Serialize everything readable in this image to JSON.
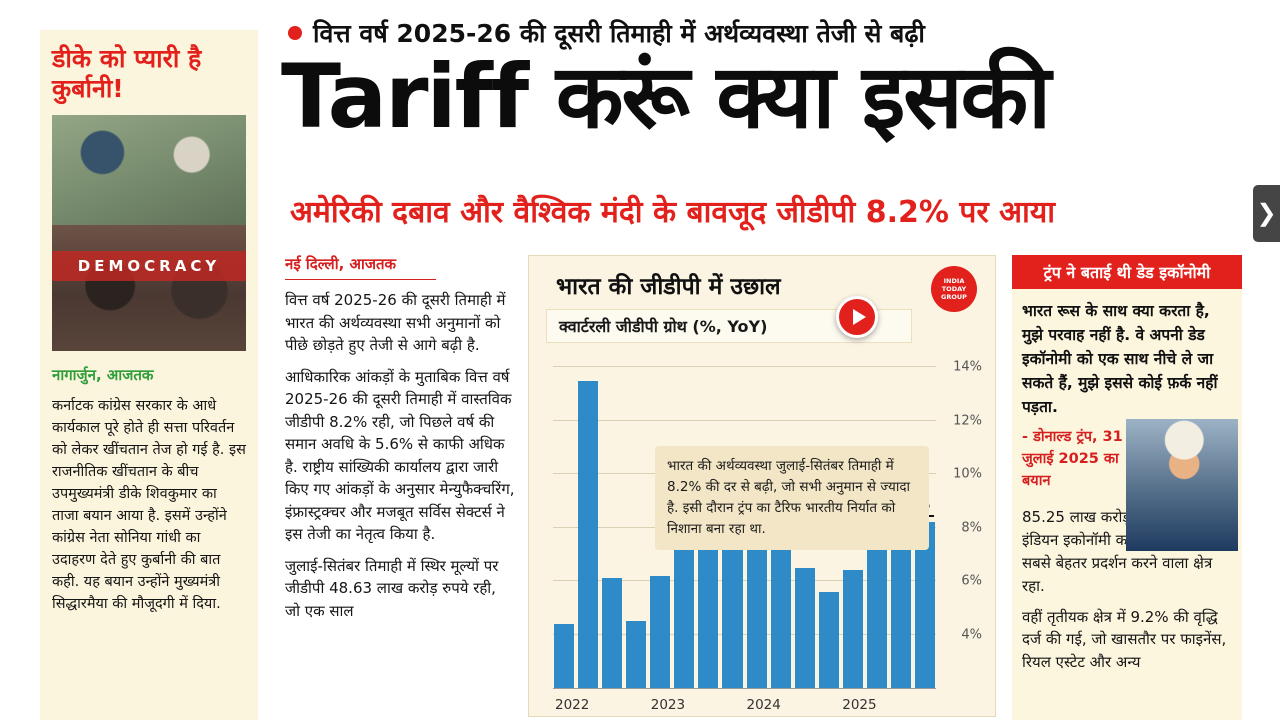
{
  "colors": {
    "accent_red": "#e2211c",
    "byline_green": "#2f9e3a",
    "bar_blue": "#2e8bc7",
    "card_cream": "#fbf4e2"
  },
  "left_sidebar": {
    "headline": "डीके को प्यारी है कुर्बानी!",
    "photo_banner": "DEMOCRACY",
    "byline": "नागार्जुन, आजतक",
    "paragraphs": [
      "कर्नाटक कांग्रेस सरकार के आधे कार्यकाल पूरे होते ही सत्ता परिवर्तन को लेकर खींचतान तेज हो गई है. इस राजनीतिक खींचतान के बीच उपमुख्यमंत्री डीके शिवकुमार का ताजा बयान आया है. इसमें उन्होंने कांग्रेस नेता सोनिया गांधी का उदाहरण देते हुए कुर्बानी की बात कही. यह बयान उन्होंने मुख्यमंत्री सिद्धारमैया की मौजूदगी में दिया."
    ]
  },
  "header": {
    "kicker": "वित्त वर्ष 2025-26 की दूसरी तिमाही में अर्थव्यवस्था तेजी से बढ़ी",
    "headline": "Tariff करूं क्या इसकी",
    "subheadline": "अमेरिकी दबाव और वैश्विक मंदी के बावजूद जीडीपी 8.2% पर आया"
  },
  "article": {
    "dateline": "नई दिल्ली, आजतक",
    "paragraphs": [
      "वित्त वर्ष 2025-26 की दूसरी तिमाही में भारत की अर्थव्यवस्था सभी अनुमानों को पीछे छोड़ते हुए तेजी से आगे बढ़ी है.",
      "आधिकारिक आंकड़ों के मुताबिक वित्त वर्ष 2025-26 की दूसरी तिमाही में वास्तविक जीडीपी 8.2% रही, जो पिछले वर्ष की समान अवधि के 5.6% से काफी अधिक है. राष्ट्रीय सांख्यिकी कार्यालय द्वारा जारी किए गए आंकड़ों के अनुसार मेन्युफैक्चरिंग, इंफ्रास्ट्रक्चर और मजबूत सर्विस सेक्टर्स ने इस तेजी का नेतृत्व किया है.",
      "जुलाई-सितंबर तिमाही में स्थिर मूल्यों पर जीडीपी 48.63 लाख करोड़ रुपये रही, जो एक साल"
    ]
  },
  "chart_card": {
    "title": "भारत की जीडीपी में उछाल",
    "subtitle": "क्वार्टरली जीडीपी ग्रोथ (%, YoY)",
    "logo_text": "INDIA TODAY GROUP",
    "annotation": "भारत की अर्थव्यवस्था जुलाई-सितंबर तिमाही में 8.2% की दर से बढ़ी, जो सभी अनुमान से ज्यादा है. इसी दौरान ट्रंप का टैरिफ भारतीय निर्यात को निशाना बना रहा था.",
    "highlight_label": "8.2%"
  },
  "chart_data": {
    "type": "bar",
    "title": "भारत की जीडीपी में उछाल",
    "subtitle": "क्वार्टरली जीडीपी ग्रोथ (%, YoY)",
    "x_tick_labels": [
      "2022",
      "2023",
      "2024",
      "2025"
    ],
    "values": [
      4.4,
      13.5,
      6.1,
      4.5,
      6.2,
      8.2,
      9.7,
      9.3,
      9.5,
      9.2,
      6.5,
      5.6,
      6.4,
      7.4,
      7.8,
      8.2
    ],
    "highlight_last_value": "8.2%",
    "ylim": [
      2,
      14.8
    ],
    "yticks": [
      4,
      6,
      8,
      10,
      12,
      14
    ],
    "grid": true,
    "bar_color": "#2e8bc7"
  },
  "right_column": {
    "header": "ट्रंप ने बताई थी डेड इकॉनोमी",
    "quote": "भारत रूस के साथ क्या करता है, मुझे परवाह नहीं है. वे अपनी डेड इकॉनोमी को एक साथ नीचे ले जा सकते हैं, मुझे इससे कोई फ़र्क नहीं पड़ता.",
    "attribution": "- डोनाल्ड ट्रंप, 31 जुलाई 2025 का बयान",
    "paragraphs": [
      "85.25 लाख करोड़ रुपये हो गई है. इंडियन इकोनॉमी का सर्विस सेक्टर सबसे बेहतर प्रदर्शन करने वाला क्षेत्र रहा.",
      "वहीं तृतीयक क्षेत्र में 9.2% की वृद्धि दर्ज की गई, जो खासतौर पर फाइनेंस, रियल एस्टेट और अन्य"
    ]
  },
  "next_button": {
    "glyph": "❯"
  }
}
